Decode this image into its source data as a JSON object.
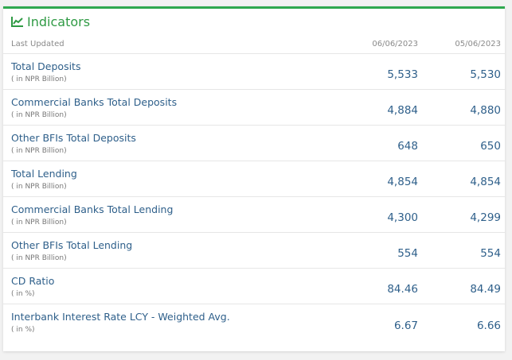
{
  "header": {
    "title": "Indicators",
    "icon": "line-chart-icon",
    "accent": "#2fa84f"
  },
  "columns": {
    "label": "Last Updated",
    "dates": [
      "06/06/2023",
      "05/06/2023"
    ]
  },
  "rows": [
    {
      "name": "Total Deposits",
      "unit": "( in NPR Billion)",
      "values": [
        "5,533",
        "5,530"
      ]
    },
    {
      "name": "Commercial Banks Total Deposits",
      "unit": "( in NPR Billion)",
      "values": [
        "4,884",
        "4,880"
      ]
    },
    {
      "name": "Other BFIs Total Deposits",
      "unit": "( in NPR Billion)",
      "values": [
        "648",
        "650"
      ]
    },
    {
      "name": "Total Lending",
      "unit": "( in NPR Billion)",
      "values": [
        "4,854",
        "4,854"
      ]
    },
    {
      "name": "Commercial Banks Total Lending",
      "unit": "( in NPR Billion)",
      "values": [
        "4,300",
        "4,299"
      ]
    },
    {
      "name": "Other BFIs Total Lending",
      "unit": "( in NPR Billion)",
      "values": [
        "554",
        "554"
      ]
    },
    {
      "name": "CD Ratio",
      "unit": "( in %)",
      "values": [
        "84.46",
        "84.49"
      ]
    },
    {
      "name": "Interbank Interest Rate LCY - Weighted Avg.",
      "unit": "( in %)",
      "values": [
        "6.67",
        "6.66"
      ]
    }
  ]
}
